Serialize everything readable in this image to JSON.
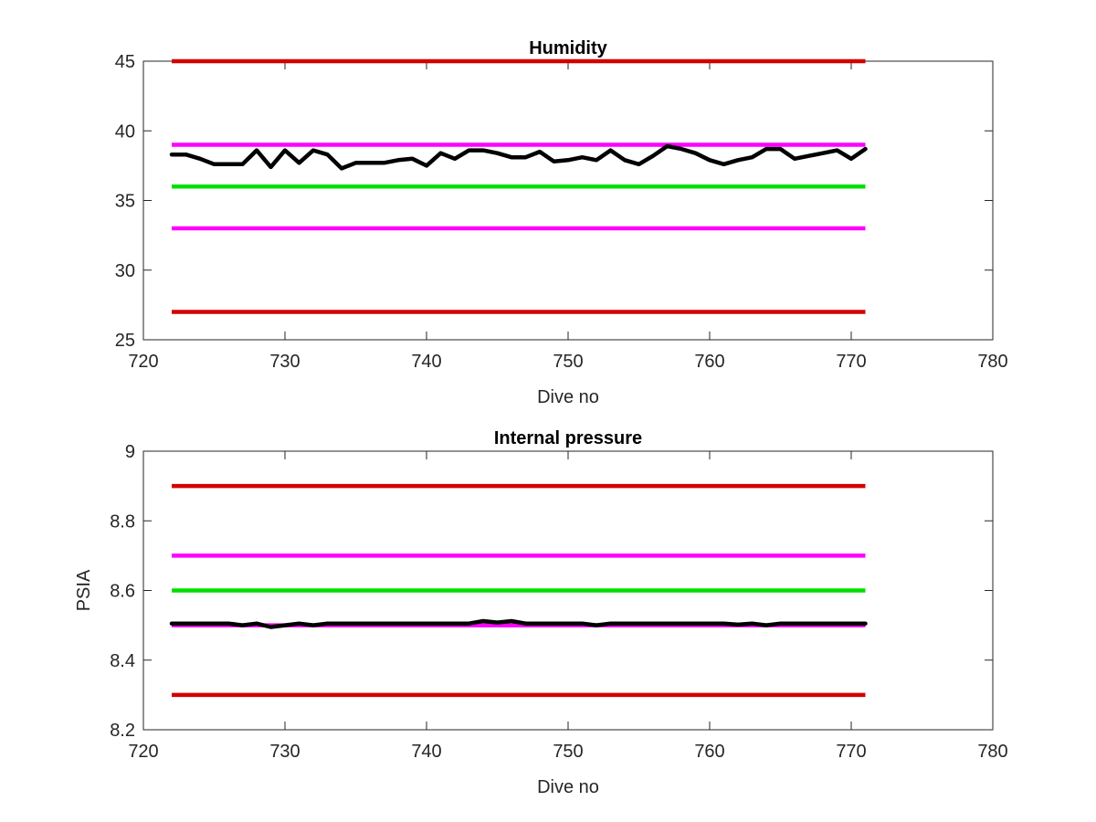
{
  "chart_data": [
    {
      "type": "line",
      "title": "Humidity",
      "xlabel": "Dive no",
      "ylabel": "",
      "xlim": [
        720,
        780
      ],
      "ylim": [
        25,
        45
      ],
      "xticks": [
        720,
        730,
        740,
        750,
        760,
        770,
        780
      ],
      "yticks": [
        25,
        30,
        35,
        40,
        45
      ],
      "grid": false,
      "reference_lines": [
        {
          "y": 45,
          "x": [
            722,
            771
          ],
          "color": "#d40000"
        },
        {
          "y": 39,
          "x": [
            722,
            771
          ],
          "color": "#ff00ff"
        },
        {
          "y": 36,
          "x": [
            722,
            771
          ],
          "color": "#00e000"
        },
        {
          "y": 33,
          "x": [
            722,
            771
          ],
          "color": "#ff00ff"
        },
        {
          "y": 27,
          "x": [
            722,
            771
          ],
          "color": "#d40000"
        }
      ],
      "series": [
        {
          "color": "#000000",
          "x": [
            722,
            723,
            724,
            725,
            726,
            727,
            728,
            729,
            730,
            731,
            732,
            733,
            734,
            735,
            736,
            737,
            738,
            739,
            740,
            741,
            742,
            743,
            744,
            745,
            746,
            747,
            748,
            749,
            750,
            751,
            752,
            753,
            754,
            755,
            756,
            757,
            758,
            759,
            760,
            761,
            762,
            763,
            764,
            765,
            766,
            767,
            768,
            769,
            770,
            771
          ],
          "y": [
            38.3,
            38.3,
            38.0,
            37.6,
            37.6,
            37.6,
            38.6,
            37.4,
            38.6,
            37.7,
            38.6,
            38.3,
            37.3,
            37.7,
            37.7,
            37.7,
            37.9,
            38.0,
            37.5,
            38.4,
            38.0,
            38.6,
            38.6,
            38.4,
            38.1,
            38.1,
            38.5,
            37.8,
            37.9,
            38.1,
            37.9,
            38.6,
            37.9,
            37.6,
            38.2,
            38.9,
            38.7,
            38.4,
            37.9,
            37.6,
            37.9,
            38.1,
            38.7,
            38.7,
            38.0,
            38.2,
            38.4,
            38.6,
            38.0,
            38.7
          ]
        }
      ]
    },
    {
      "type": "line",
      "title": "Internal pressure",
      "xlabel": "Dive no",
      "ylabel": "PSIA",
      "xlim": [
        720,
        780
      ],
      "ylim": [
        8.2,
        9.0
      ],
      "xticks": [
        720,
        730,
        740,
        750,
        760,
        770,
        780
      ],
      "yticks": [
        8.2,
        8.4,
        8.6,
        8.8,
        9
      ],
      "grid": false,
      "reference_lines": [
        {
          "y": 8.9,
          "x": [
            722,
            771
          ],
          "color": "#d40000"
        },
        {
          "y": 8.7,
          "x": [
            722,
            771
          ],
          "color": "#ff00ff"
        },
        {
          "y": 8.6,
          "x": [
            722,
            771
          ],
          "color": "#00e000"
        },
        {
          "y": 8.5,
          "x": [
            722,
            771
          ],
          "color": "#ff00ff"
        },
        {
          "y": 8.3,
          "x": [
            722,
            771
          ],
          "color": "#d40000"
        }
      ],
      "series": [
        {
          "color": "#000000",
          "x": [
            722,
            723,
            724,
            725,
            726,
            727,
            728,
            729,
            730,
            731,
            732,
            733,
            734,
            735,
            736,
            737,
            738,
            739,
            740,
            741,
            742,
            743,
            744,
            745,
            746,
            747,
            748,
            749,
            750,
            751,
            752,
            753,
            754,
            755,
            756,
            757,
            758,
            759,
            760,
            761,
            762,
            763,
            764,
            765,
            766,
            767,
            768,
            769,
            770,
            771
          ],
          "y": [
            8.505,
            8.505,
            8.505,
            8.505,
            8.505,
            8.5,
            8.505,
            8.495,
            8.5,
            8.505,
            8.5,
            8.505,
            8.505,
            8.505,
            8.505,
            8.505,
            8.505,
            8.505,
            8.505,
            8.505,
            8.505,
            8.505,
            8.512,
            8.508,
            8.512,
            8.505,
            8.505,
            8.505,
            8.505,
            8.505,
            8.5,
            8.505,
            8.505,
            8.505,
            8.505,
            8.505,
            8.505,
            8.505,
            8.505,
            8.505,
            8.502,
            8.505,
            8.5,
            8.505,
            8.505,
            8.505,
            8.505,
            8.505,
            8.505,
            8.505
          ]
        }
      ]
    }
  ]
}
